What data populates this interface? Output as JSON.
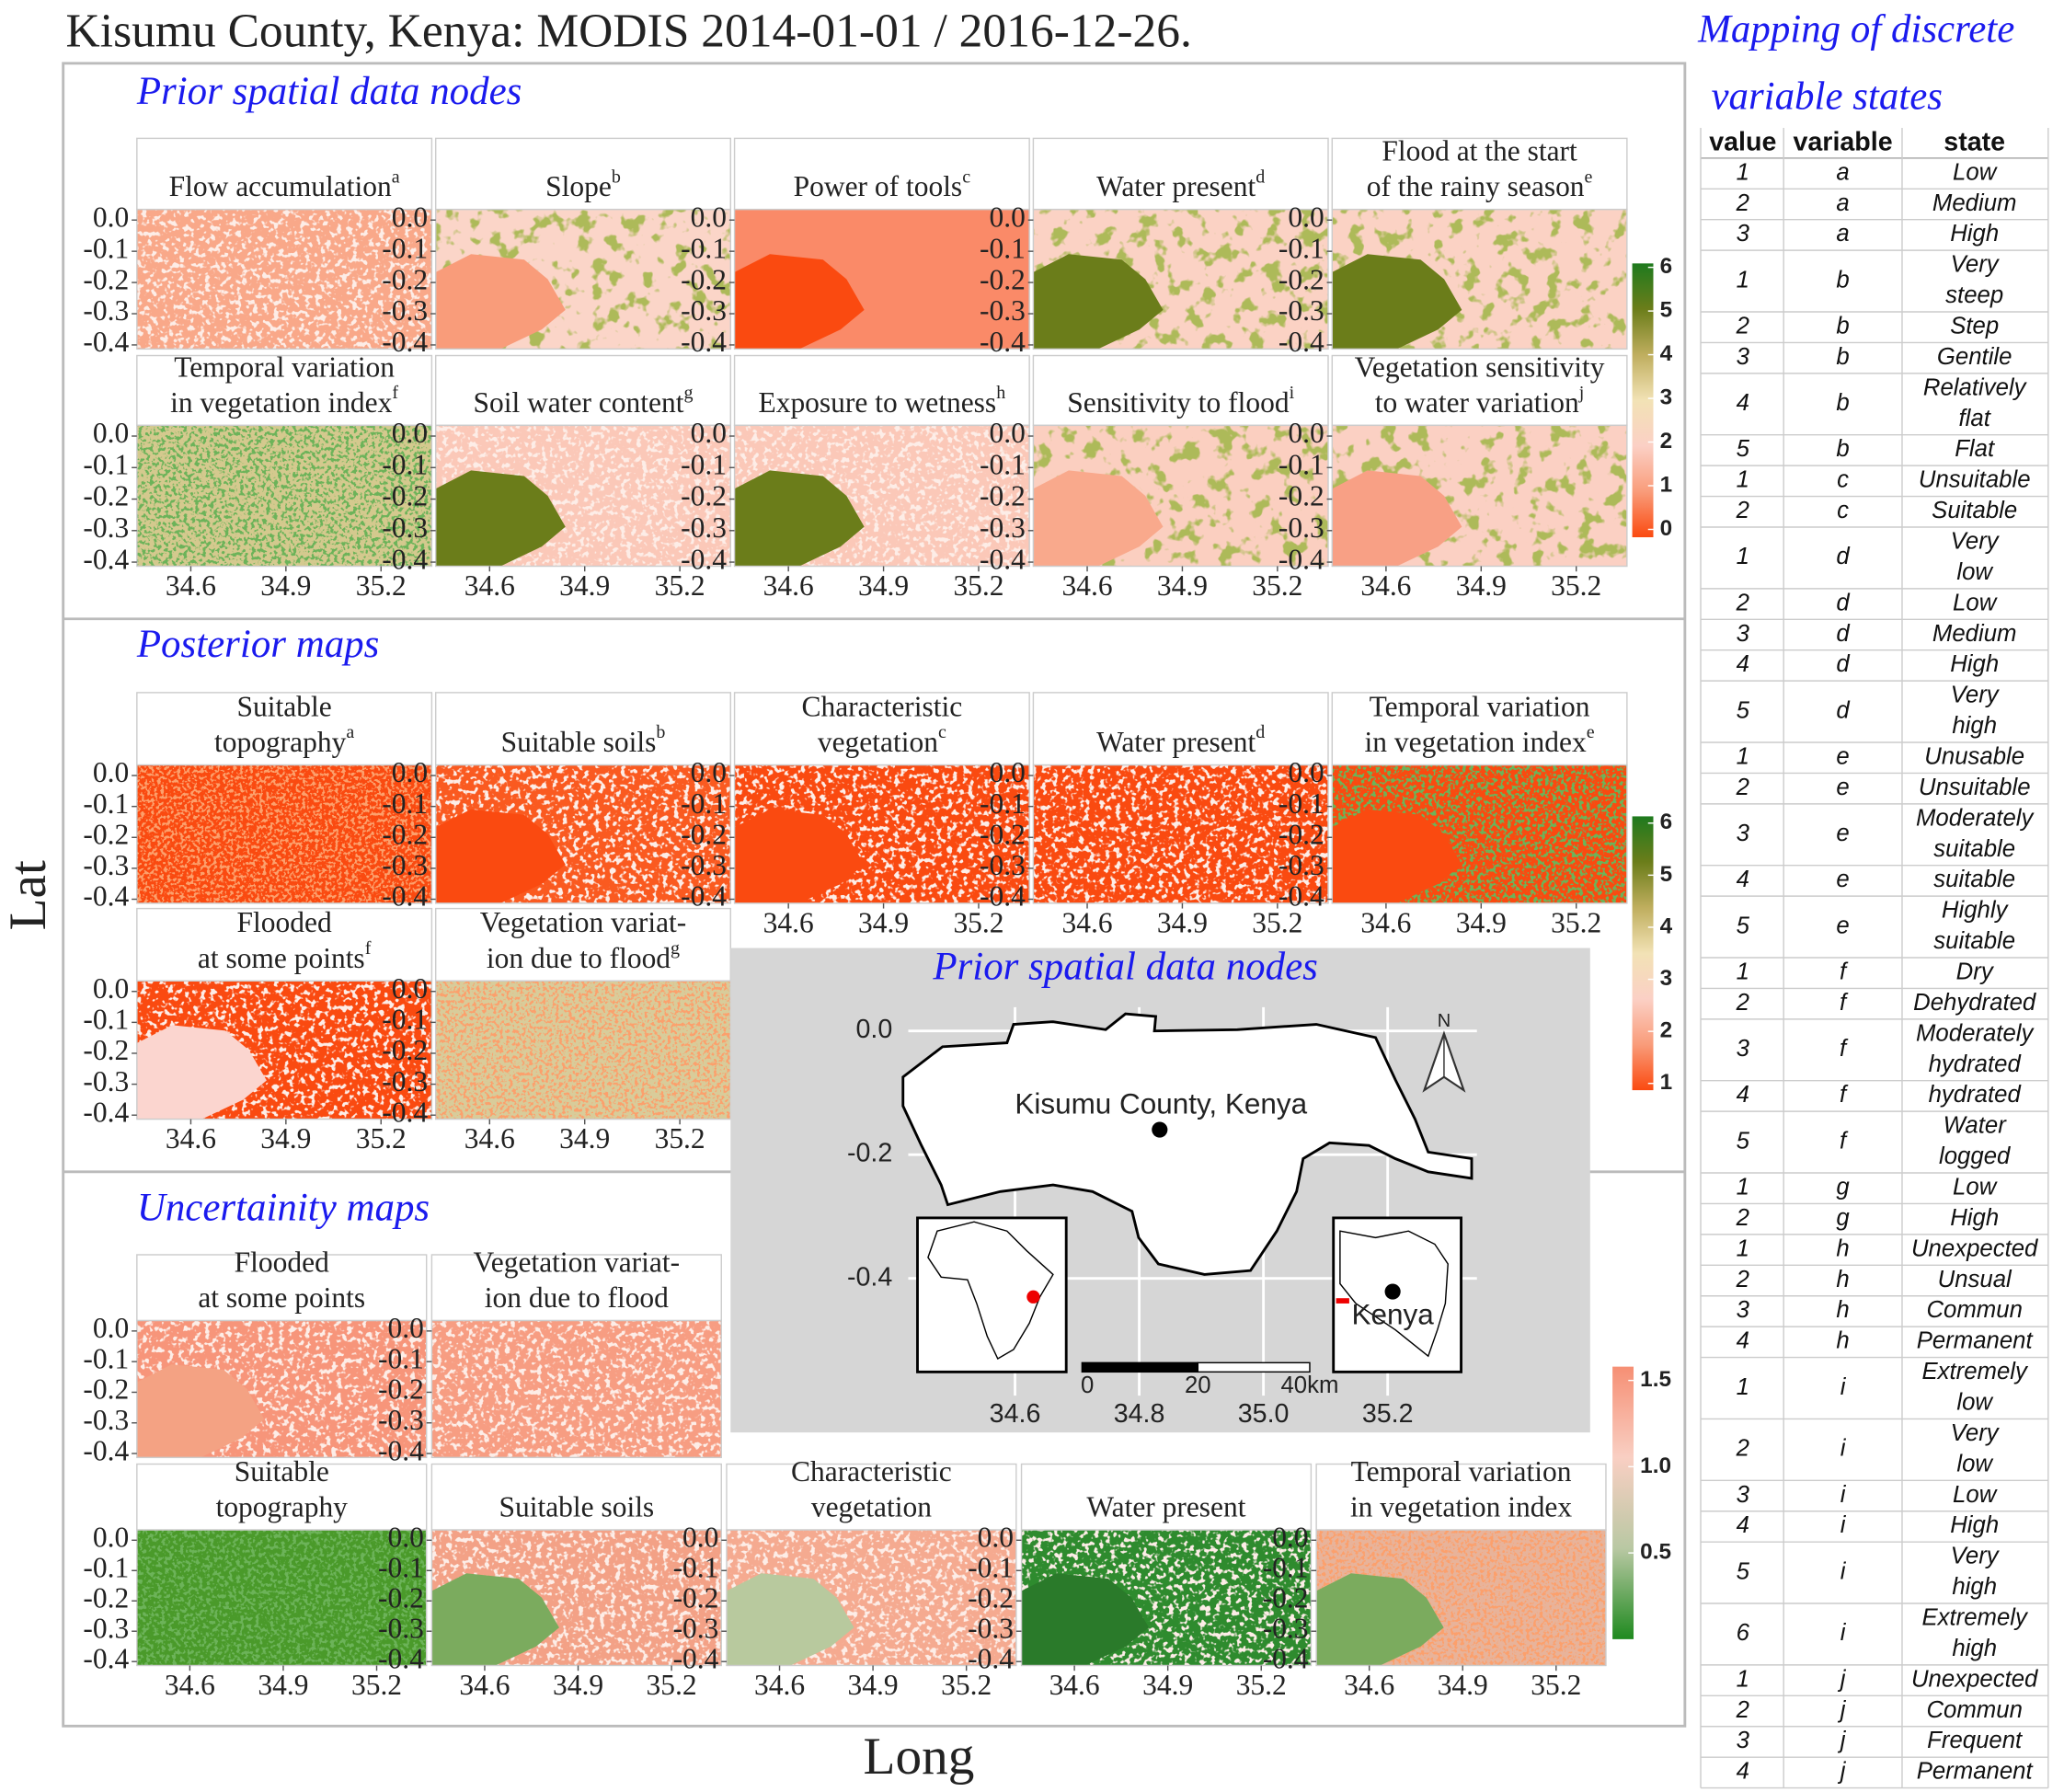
{
  "title": "Kisumu County, Kenya: MODIS 2014-01-01 / 2016-12-26.",
  "y_label": "Lat",
  "x_label": "Long",
  "lat_ticks": [
    {
      "value": 0,
      "label": "0.0"
    },
    -0.1,
    -0.2,
    -0.3,
    -0.4
  ],
  "lat_lim": [
    -0.413,
    0.034
  ],
  "long_ticks": [
    34.6,
    34.9,
    35.2
  ],
  "long_lim": [
    34.43,
    35.36
  ],
  "sections": [
    {
      "title": "Prior spatial data nodes",
      "panels": [
        {
          "lines": [
            "Flow accumulation"
          ],
          "note": "a"
        },
        {
          "lines": [
            "Slope"
          ],
          "note": "b"
        },
        {
          "lines": [
            "Power of tools"
          ],
          "note": "c"
        },
        {
          "lines": [
            "Water present"
          ],
          "note": "d"
        },
        {
          "lines": [
            "Flood at the start",
            "of the rainy season"
          ],
          "note": "e"
        },
        {
          "lines": [
            "Temporal variation",
            "in vegetation index"
          ],
          "note": "f"
        },
        {
          "lines": [
            "Soil water content"
          ],
          "note": "g"
        },
        {
          "lines": [
            "Exposure to wetness"
          ],
          "note": "h"
        },
        {
          "lines": [
            "Sensitivity to flood"
          ],
          "note": "i"
        },
        {
          "lines": [
            "Vegetation sensitivity",
            "to water variation"
          ],
          "note": "j"
        }
      ],
      "legend": {
        "ticks": [
          0,
          1,
          2,
          3,
          4,
          5,
          6
        ],
        "lim": [
          -0.18,
          6.09
        ],
        "colors": [
          "#1e7a1e",
          "#6b7d1a",
          "#bfae5e",
          "#f2e2b5",
          "#fbd0c5",
          "#f99c7a",
          "#fa4a10"
        ]
      }
    },
    {
      "title": "Posterior maps",
      "panels": [
        {
          "lines": [
            "Suitable",
            "topography"
          ],
          "note": "a"
        },
        {
          "lines": [
            "Suitable soils"
          ],
          "note": "b"
        },
        {
          "lines": [
            "Characteristic",
            "vegetation"
          ],
          "note": "c"
        },
        {
          "lines": [
            "Water present"
          ],
          "note": "d"
        },
        {
          "lines": [
            "Temporal variation",
            "in vegetation index"
          ],
          "note": "e"
        },
        {
          "lines": [
            "Flooded",
            "at some points"
          ],
          "note": "f"
        },
        {
          "lines": [
            "Vegetation variat-",
            "ion due to flood"
          ],
          "note": "g"
        }
      ],
      "legend": {
        "ticks": [
          1,
          2,
          3,
          4,
          5,
          6
        ],
        "lim": [
          0.87,
          6.13
        ],
        "colors": [
          "#1e7a1e",
          "#6b7d1a",
          "#bfae5e",
          "#f2e2b5",
          "#fbd0c5",
          "#f99c7a",
          "#fa4a10"
        ]
      }
    },
    {
      "title": "Uncertainity maps",
      "panels": [
        {
          "lines": [
            "Flooded",
            "at some points"
          ]
        },
        {
          "lines": [
            "Vegetation variat-",
            "ion due to flood"
          ]
        },
        {
          "lines": [
            "Suitable",
            "topography"
          ]
        },
        {
          "lines": [
            "Suitable soils"
          ]
        },
        {
          "lines": [
            "Characteristic",
            "vegetation"
          ]
        },
        {
          "lines": [
            "Water present"
          ]
        },
        {
          "lines": [
            "Temporal variation",
            "in vegetation index"
          ]
        }
      ],
      "legend": {
        "ticks": [
          0.5,
          {
            "value": 1,
            "label": "1.0"
          },
          1.5
        ],
        "lim": [
          0,
          1.58
        ],
        "colors": [
          "#f68f74",
          "#f9cfc3",
          "#b9c8a3",
          "#1f8a1f"
        ]
      }
    }
  ],
  "inset": {
    "title": "Prior spatial data nodes",
    "label": "Kisumu County, Kenya",
    "country": "Kenya",
    "north": "N",
    "scale": [
      "0",
      "20",
      "40km"
    ],
    "xticks": [
      34.6,
      34.8,
      {
        "value": 35,
        "label": "35.0"
      },
      35.2
    ],
    "xlim": [
      34.142,
      35.526
    ],
    "yticks": [
      {
        "value": 0,
        "label": "0.0"
      },
      -0.2,
      -0.4
    ],
    "ylim": [
      -0.649,
      0.134
    ]
  },
  "table": {
    "title": [
      "Mapping of discrete",
      "variable states"
    ],
    "header": [
      "value",
      "variable",
      "state"
    ],
    "rows": [
      [
        "1",
        "a",
        "Low"
      ],
      [
        "2",
        "a",
        "Medium"
      ],
      [
        "3",
        "a",
        "High"
      ],
      [
        "1",
        "b",
        [
          "Very",
          "steep"
        ]
      ],
      [
        "2",
        "b",
        "Step"
      ],
      [
        "3",
        "b",
        "Gentile"
      ],
      [
        "4",
        "b",
        [
          "Relatively",
          "flat"
        ]
      ],
      [
        "5",
        "b",
        "Flat"
      ],
      [
        "1",
        "c",
        "Unsuitable"
      ],
      [
        "2",
        "c",
        "Suitable"
      ],
      [
        "1",
        "d",
        [
          "Very",
          "low"
        ]
      ],
      [
        "2",
        "d",
        "Low"
      ],
      [
        "3",
        "d",
        "Medium"
      ],
      [
        "4",
        "d",
        "High"
      ],
      [
        "5",
        "d",
        [
          "Very",
          "high"
        ]
      ],
      [
        "1",
        "e",
        "Unusable"
      ],
      [
        "2",
        "e",
        "Unsuitable"
      ],
      [
        "3",
        "e",
        [
          "Moderately",
          "suitable"
        ]
      ],
      [
        "4",
        "e",
        "suitable"
      ],
      [
        "5",
        "e",
        [
          "Highly",
          "suitable"
        ]
      ],
      [
        "1",
        "f",
        "Dry"
      ],
      [
        "2",
        "f",
        "Dehydrated"
      ],
      [
        "3",
        "f",
        [
          "Moderately",
          "hydrated"
        ]
      ],
      [
        "4",
        "f",
        "hydrated"
      ],
      [
        "5",
        "f",
        [
          "Water",
          "logged"
        ]
      ],
      [
        "1",
        "g",
        "Low"
      ],
      [
        "2",
        "g",
        "High"
      ],
      [
        "1",
        "h",
        "Unexpected"
      ],
      [
        "2",
        "h",
        "Unsual"
      ],
      [
        "3",
        "h",
        "Commun"
      ],
      [
        "4",
        "h",
        "Permanent"
      ],
      [
        "1",
        "i",
        [
          "Extremely",
          "low"
        ]
      ],
      [
        "2",
        "i",
        [
          "Very",
          "low"
        ]
      ],
      [
        "3",
        "i",
        "Low"
      ],
      [
        "4",
        "i",
        "High"
      ],
      [
        "5",
        "i",
        [
          "Very",
          "high"
        ]
      ],
      [
        "6",
        "i",
        [
          "Extremely",
          "high"
        ]
      ],
      [
        "1",
        "j",
        "Unexpected"
      ],
      [
        "2",
        "j",
        "Commun"
      ],
      [
        "3",
        "j",
        "Frequent"
      ],
      [
        "4",
        "j",
        "Permanent"
      ]
    ]
  }
}
